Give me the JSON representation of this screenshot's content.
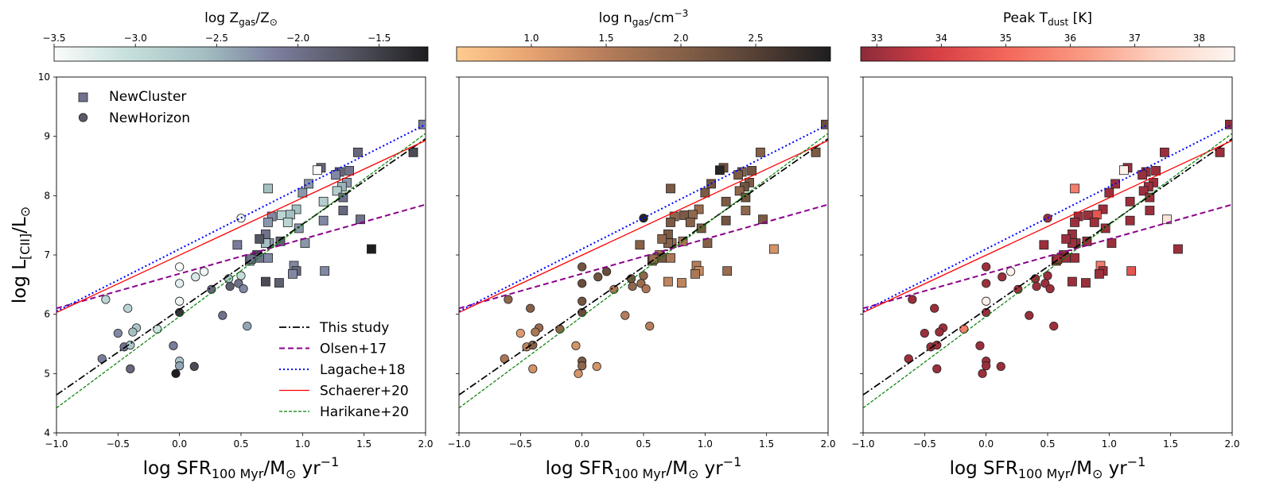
{
  "chart_data": {
    "type": "scatter",
    "shared": {
      "x_range": [
        -1.0,
        2.0
      ],
      "y_range": [
        4,
        10
      ],
      "x_ticks": [
        -1.0,
        -0.5,
        0.0,
        0.5,
        1.0,
        1.5,
        2.0
      ],
      "x_tick_labels": [
        "−1.0",
        "−0.5",
        "0.0",
        "0.5",
        "1.0",
        "1.5",
        "2.0"
      ],
      "y_ticks": [
        4,
        5,
        6,
        7,
        8,
        9,
        10
      ],
      "y_tick_labels": [
        "4",
        "5",
        "6",
        "7",
        "8",
        "9",
        "10"
      ],
      "xlabel": {
        "main": "log SFR",
        "sub": "100 Myr",
        "rest": "/M",
        "sun": "⊙",
        "unit": " yr",
        "sup": "−1"
      },
      "ylabel": {
        "main": "log L",
        "sub": "[CII]",
        "rest": "/L",
        "sun": "⊙"
      },
      "legend_scatter": [
        "NewCluster",
        "NewHorizon"
      ],
      "legend_lines": [
        "This study",
        "Olsen+17",
        "Lagache+18",
        "Schaerer+20",
        "Harikane+20"
      ],
      "line_colors": {
        "This study": "#000000",
        "Olsen+17": "#8b008b",
        "Lagache+18": "#0000ff",
        "Schaerer+20": "#ff0000",
        "Harikane+20": "#008000"
      },
      "relations": [
        {
          "name": "This study",
          "x": [
            -1.0,
            2.0
          ],
          "y": [
            4.64,
            8.96
          ]
        },
        {
          "name": "Olsen+17",
          "x": [
            -1.0,
            2.0
          ],
          "y": [
            6.1,
            7.85
          ]
        },
        {
          "name": "Lagache+18",
          "x": [
            -1.0,
            2.0
          ],
          "y": [
            6.05,
            9.2
          ]
        },
        {
          "name": "Schaerer+20",
          "x": [
            -1.0,
            2.0
          ],
          "y": [
            6.03,
            8.93
          ]
        },
        {
          "name": "Harikane+20",
          "x": [
            -1.0,
            2.0
          ],
          "y": [
            4.42,
            9.05
          ]
        }
      ]
    },
    "series": [
      {
        "name": "NewCluster",
        "marker": "square",
        "points": [
          [
            1.98,
            9.2
          ],
          [
            1.9,
            8.73
          ],
          [
            1.45,
            8.73
          ],
          [
            1.15,
            8.47
          ],
          [
            1.12,
            8.43
          ],
          [
            1.3,
            8.4
          ],
          [
            1.27,
            8.35
          ],
          [
            1.38,
            8.42
          ],
          [
            1.36,
            8.22
          ],
          [
            1.32,
            8.15
          ],
          [
            1.28,
            8.08
          ],
          [
            1.0,
            8.05
          ],
          [
            0.72,
            8.12
          ],
          [
            1.05,
            8.2
          ],
          [
            1.17,
            7.9
          ],
          [
            1.33,
            7.97
          ],
          [
            0.95,
            7.77
          ],
          [
            0.83,
            7.67
          ],
          [
            0.75,
            7.65
          ],
          [
            0.9,
            7.68
          ],
          [
            0.88,
            7.55
          ],
          [
            0.72,
            7.55
          ],
          [
            1.47,
            7.6
          ],
          [
            1.17,
            7.58
          ],
          [
            1.33,
            7.75
          ],
          [
            0.97,
            7.45
          ],
          [
            0.7,
            7.35
          ],
          [
            0.73,
            7.2
          ],
          [
            0.7,
            7.2
          ],
          [
            0.65,
            7.27
          ],
          [
            0.82,
            7.23
          ],
          [
            1.02,
            7.2
          ],
          [
            0.47,
            7.17
          ],
          [
            1.56,
            7.1
          ],
          [
            0.63,
            7.0
          ],
          [
            0.65,
            6.95
          ],
          [
            0.57,
            6.9
          ],
          [
            0.58,
            6.93
          ],
          [
            0.72,
            6.95
          ],
          [
            0.7,
            6.55
          ],
          [
            0.81,
            6.53
          ],
          [
            0.93,
            6.82
          ],
          [
            0.95,
            6.73
          ],
          [
            0.92,
            6.68
          ],
          [
            1.18,
            6.73
          ]
        ],
        "colors": {
          "metallicity": [
            -2.1,
            -1.6,
            -1.9,
            -1.9,
            -3.5,
            -1.9,
            -2.2,
            -2.0,
            -2.3,
            -2.5,
            -2.8,
            -2.3,
            -2.6,
            -2.3,
            -2.8,
            -2.0,
            -2.6,
            -2.9,
            -2.2,
            -2.6,
            -2.9,
            -2.3,
            -2.0,
            -2.2,
            -1.9,
            -2.3,
            -2.0,
            -2.3,
            -2.6,
            -1.7,
            -1.8,
            -2.3,
            -2.1,
            -1.2,
            -1.6,
            -2.0,
            -2.3,
            -2.0,
            -2.2,
            -1.6,
            -1.8,
            -2.2,
            -1.9,
            -2.2,
            -2.2
          ],
          "density": [
            2.3,
            2.1,
            2.0,
            2.2,
            2.9,
            2.0,
            2.1,
            2.2,
            2.1,
            2.2,
            1.9,
            2.1,
            2.1,
            2.2,
            2.1,
            2.2,
            1.8,
            2.1,
            1.9,
            1.9,
            2.0,
            2.1,
            2.1,
            2.2,
            1.9,
            2.1,
            2.1,
            1.8,
            2.0,
            1.9,
            1.6,
            2.0,
            2.0,
            1.2,
            1.6,
            2.2,
            2.0,
            1.8,
            1.6,
            1.4,
            1.4,
            1.5,
            1.3,
            1.6,
            1.8
          ],
          "temperature": [
            32.8,
            33.0,
            33.0,
            33.0,
            38.4,
            33.0,
            33.0,
            33.0,
            33.0,
            33.0,
            33.0,
            33.0,
            35.5,
            33.0,
            33.0,
            33.0,
            33.0,
            33.0,
            33.0,
            34.5,
            33.0,
            33.0,
            38.0,
            33.0,
            33.0,
            33.0,
            33.0,
            33.0,
            33.0,
            33.0,
            33.0,
            33.0,
            33.0,
            33.0,
            33.0,
            33.0,
            33.0,
            33.0,
            33.0,
            33.0,
            33.0,
            35.5,
            33.0,
            33.0,
            34.5
          ]
        }
      },
      {
        "name": "NewHorizon",
        "marker": "circle",
        "points": [
          [
            0.5,
            7.62
          ],
          [
            -0.6,
            6.25
          ],
          [
            -0.42,
            6.1
          ],
          [
            -0.35,
            5.77
          ],
          [
            -0.38,
            5.7
          ],
          [
            -0.18,
            5.75
          ],
          [
            0.13,
            6.63
          ],
          [
            0.0,
            6.8
          ],
          [
            -0.0,
            6.52
          ],
          [
            0.2,
            6.72
          ],
          [
            0.4,
            6.6
          ],
          [
            0.5,
            6.65
          ],
          [
            0.48,
            6.52
          ],
          [
            0.41,
            6.47
          ],
          [
            0.52,
            6.43
          ],
          [
            0.26,
            6.42
          ],
          [
            0.0,
            6.22
          ],
          [
            0.0,
            6.03
          ],
          [
            0.35,
            5.98
          ],
          [
            0.55,
            5.8
          ],
          [
            -0.5,
            5.68
          ],
          [
            -0.45,
            5.45
          ],
          [
            -0.4,
            5.48
          ],
          [
            -0.4,
            5.08
          ],
          [
            -0.63,
            5.25
          ],
          [
            -0.05,
            5.47
          ],
          [
            0.0,
            5.21
          ],
          [
            0.0,
            5.13
          ],
          [
            0.12,
            5.12
          ],
          [
            -0.03,
            5.0
          ]
        ],
        "colors": {
          "metallicity": [
            -3.4,
            -2.9,
            -2.9,
            -2.7,
            -2.6,
            -3.1,
            -3.2,
            -3.5,
            -3.3,
            -3.4,
            -2.7,
            -3.0,
            -2.0,
            -1.8,
            -2.2,
            -1.9,
            -3.4,
            -1.4,
            -2.0,
            -2.4,
            -2.2,
            -2.0,
            -2.7,
            -1.9,
            -2.1,
            -2.1,
            -2.7,
            -2.4,
            -1.6,
            -1.2
          ],
          "density": [
            2.9,
            1.9,
            2.0,
            1.8,
            1.6,
            1.9,
            2.2,
            2.2,
            2.3,
            2.3,
            2.2,
            1.9,
            1.8,
            1.9,
            1.6,
            1.6,
            2.2,
            2.3,
            1.5,
            1.5,
            1.1,
            1.4,
            2.0,
            1.2,
            1.6,
            1.2,
            2.1,
            1.9,
            1.2,
            1.2
          ],
          "temperature": [
            33.0,
            33.0,
            33.0,
            33.0,
            33.0,
            35.5,
            33.0,
            33.0,
            33.0,
            38.4,
            33.0,
            33.0,
            33.0,
            33.0,
            33.0,
            33.0,
            38.4,
            33.0,
            33.0,
            33.0,
            33.0,
            33.0,
            33.0,
            33.0,
            33.0,
            33.0,
            33.0,
            33.0,
            33.0,
            33.0
          ]
        }
      }
    ],
    "panels": [
      {
        "id": "left",
        "colorbar": {
          "label": {
            "main": "log Z",
            "sub": "gas",
            "rest": "/Z",
            "sun": "⊙"
          },
          "range": [
            -3.5,
            -1.2
          ],
          "ticks": [
            -3.5,
            -3.0,
            -2.5,
            -2.0,
            -1.5
          ],
          "tick_labels": [
            "−3.5",
            "−3.0",
            "−2.5",
            "−2.0",
            "−1.5"
          ],
          "colormap": [
            "#fafcfb",
            "#c6dfdc",
            "#a3bfc2",
            "#7a7d9c",
            "#52525e",
            "#1e1e20"
          ],
          "color_key": "metallicity"
        },
        "show_legend": true,
        "show_y_tick_labels": true
      },
      {
        "id": "middle",
        "colorbar": {
          "label": {
            "main": "log n",
            "sub": "gas",
            "rest": "/cm",
            "sup": "−3"
          },
          "range": [
            0.5,
            3.0
          ],
          "ticks": [
            1.0,
            1.5,
            2.0,
            2.5
          ],
          "tick_labels": [
            "1.0",
            "1.5",
            "2.0",
            "2.5"
          ],
          "colormap": [
            "#ffcc8f",
            "#e7a371",
            "#b57d5b",
            "#866148",
            "#554035",
            "#1e1e20"
          ],
          "color_key": "density"
        },
        "show_legend": false,
        "show_y_tick_labels": false
      },
      {
        "id": "right",
        "colorbar": {
          "label": {
            "main": "Peak T",
            "sub": "dust",
            "rest": " [K]"
          },
          "range": [
            32.75,
            38.55
          ],
          "ticks": [
            33,
            34,
            35,
            36,
            37,
            38
          ],
          "tick_labels": [
            "33",
            "34",
            "35",
            "36",
            "37",
            "38"
          ],
          "colormap": [
            "#8c2b3a",
            "#d63f45",
            "#f46a5c",
            "#fa9b84",
            "#fdd3c3",
            "#fdf6f2"
          ],
          "color_key": "temperature"
        },
        "show_legend": false,
        "show_y_tick_labels": false
      }
    ]
  }
}
